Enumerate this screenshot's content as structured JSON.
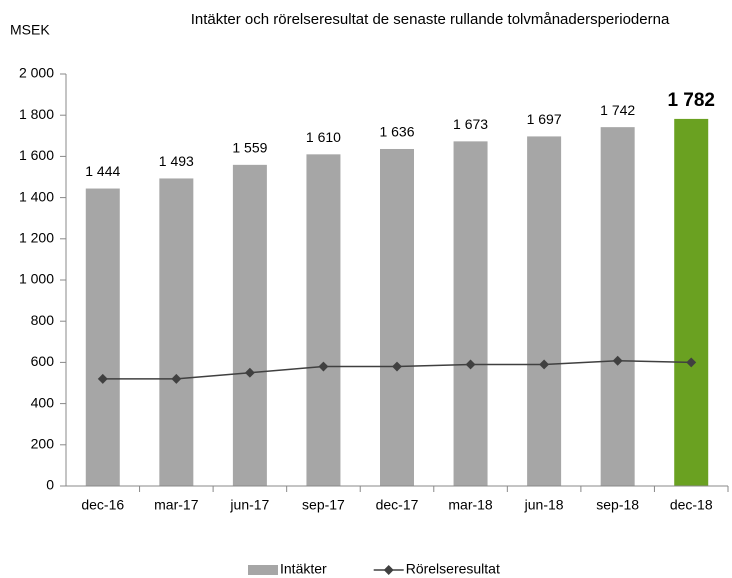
{
  "chart_data": {
    "type": "bar",
    "title": "Intäkter och rörelseresultat de senaste rullande tolvmånadersperioderna",
    "y_axis_label": "MSEK",
    "categories": [
      "dec-16",
      "mar-17",
      "jun-17",
      "sep-17",
      "dec-17",
      "mar-18",
      "jun-18",
      "sep-18",
      "dec-18"
    ],
    "series": [
      {
        "name": "Intäkter",
        "type": "bar",
        "color": "#a6a6a6",
        "point_colors": [
          "#a6a6a6",
          "#a6a6a6",
          "#a6a6a6",
          "#a6a6a6",
          "#a6a6a6",
          "#a6a6a6",
          "#a6a6a6",
          "#a6a6a6",
          "#6aa121"
        ],
        "values": [
          1444,
          1493,
          1559,
          1610,
          1636,
          1673,
          1697,
          1742,
          1782
        ],
        "value_labels": [
          "1 444",
          "1 493",
          "1 559",
          "1 610",
          "1 636",
          "1 673",
          "1 697",
          "1 742",
          "1 782"
        ]
      },
      {
        "name": "Rörelseresultat",
        "type": "line",
        "color": "#404040",
        "values": [
          520,
          520,
          550,
          580,
          580,
          590,
          590,
          608,
          600
        ]
      }
    ],
    "ylim": [
      0,
      2000
    ],
    "yticks": [
      0,
      200,
      400,
      600,
      800,
      {
        "value": 1000,
        "label": "1 000"
      },
      {
        "value": 1200,
        "label": "1 200"
      },
      {
        "value": 1400,
        "label": "1 400"
      },
      {
        "value": 1600,
        "label": "1 600"
      },
      {
        "value": 1800,
        "label": "1 800"
      },
      {
        "value": 2000,
        "label": "2 000"
      }
    ],
    "grid": false,
    "legend": "bottom"
  }
}
